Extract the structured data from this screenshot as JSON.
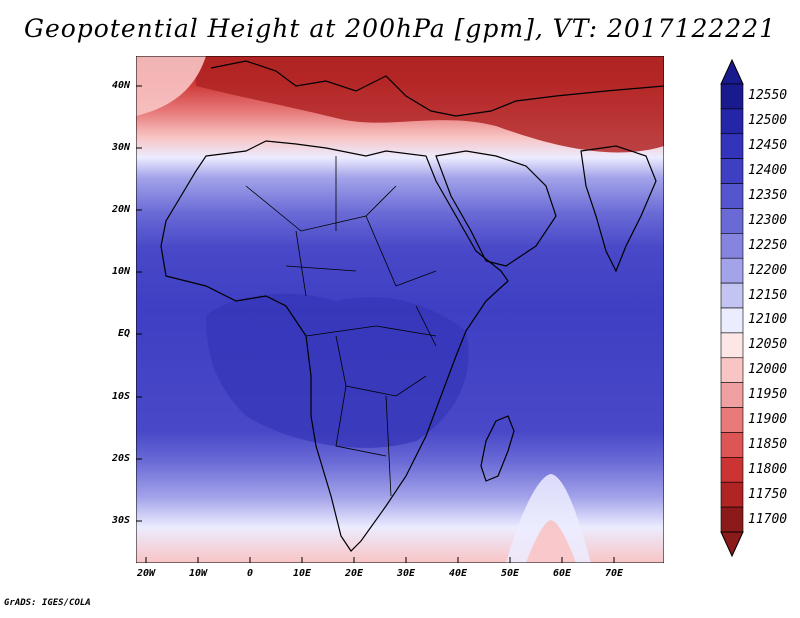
{
  "title": "Geopotential Height at 200hPa [gpm], VT: 2017122221",
  "credit": "GrADS: IGES/COLA",
  "lat_labels": [
    "40N",
    "30N",
    "20N",
    "10N",
    "EQ",
    "10S",
    "20S",
    "30S"
  ],
  "lon_labels": [
    "20W",
    "10W",
    "0",
    "10E",
    "20E",
    "30E",
    "40E",
    "50E",
    "60E",
    "70E"
  ],
  "colorbar": {
    "levels": [
      "12550",
      "12500",
      "12450",
      "12400",
      "12350",
      "12300",
      "12250",
      "12200",
      "12150",
      "12100",
      "12050",
      "12000",
      "11950",
      "11900",
      "11850",
      "11800",
      "11750",
      "11700"
    ],
    "colors": [
      "#1a1a8f",
      "#2525a8",
      "#3333bb",
      "#3f3fc4",
      "#5555cd",
      "#6a6ad6",
      "#8585e0",
      "#a3a3ea",
      "#c4c4f3",
      "#ececff",
      "#fde6e6",
      "#f8c4c4",
      "#f0a0a0",
      "#e87a7a",
      "#dd5555",
      "#cc3333",
      "#b02424",
      "#8b1a1a"
    ]
  }
}
